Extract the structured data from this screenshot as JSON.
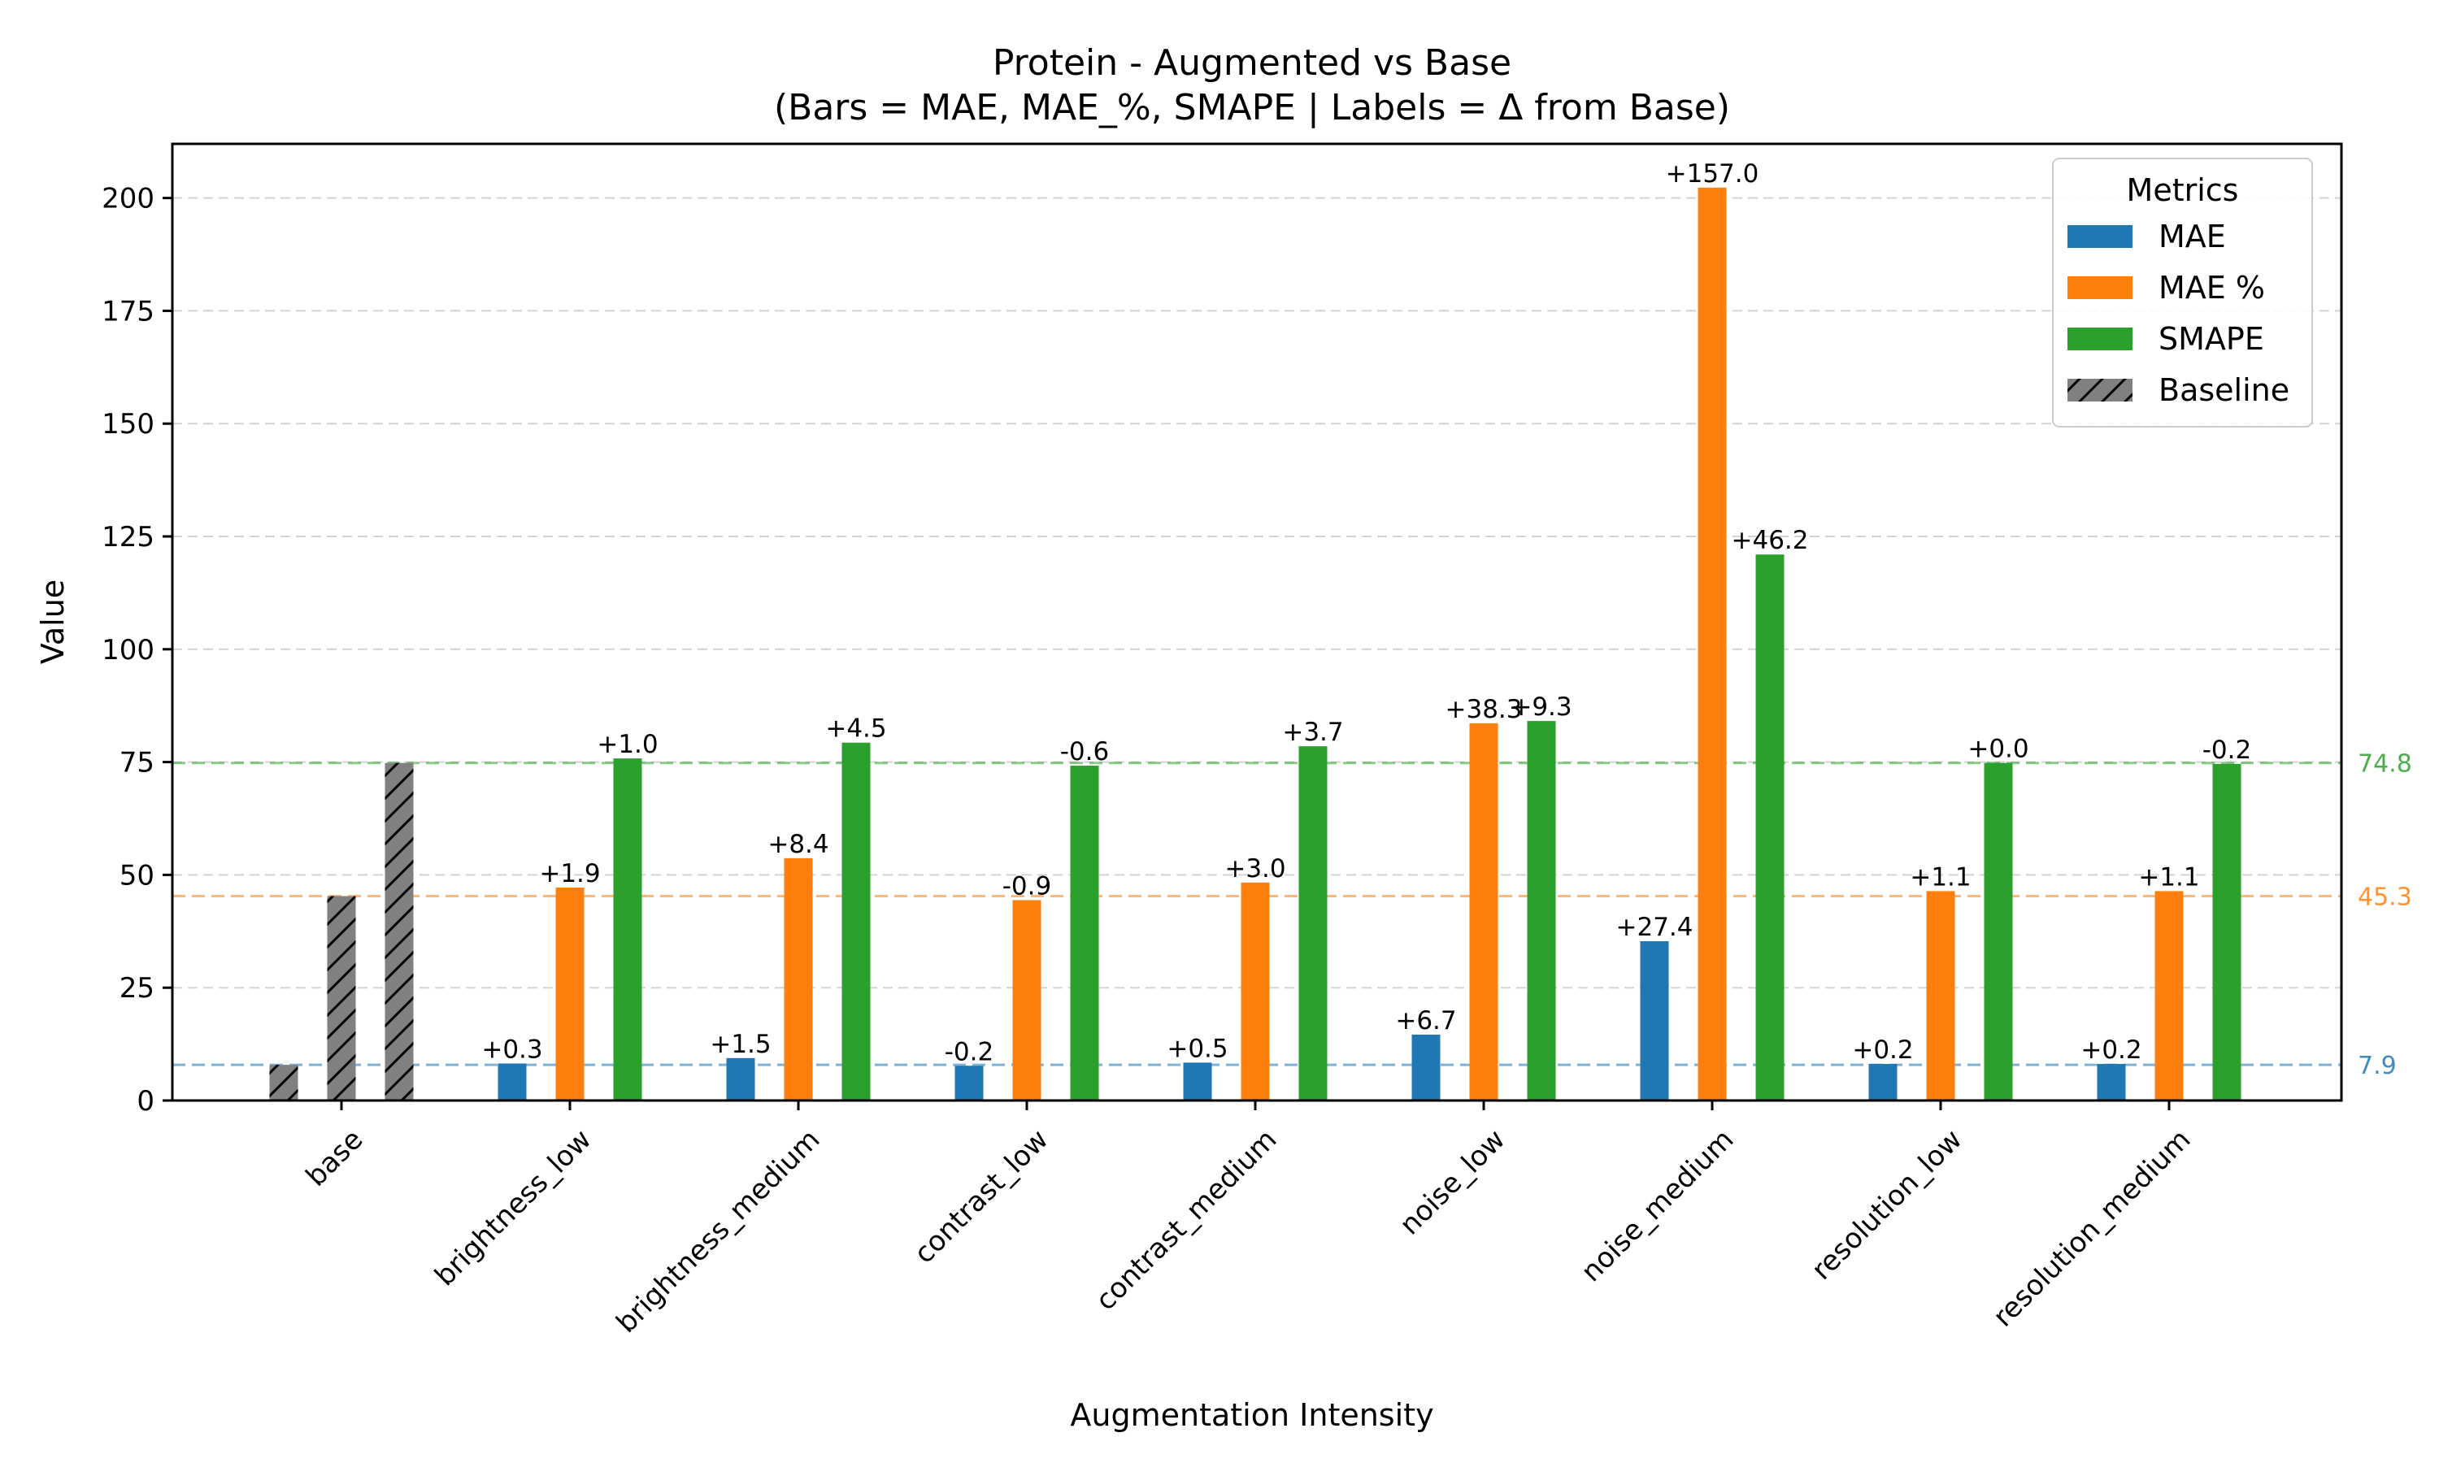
{
  "chart_data": {
    "type": "bar",
    "title": "Protein - Augmented vs Base",
    "subtitle": "(Bars = MAE, MAE_%, SMAPE | Labels = Δ from Base)",
    "xlabel": "Augmentation Intensity",
    "ylabel": "Value",
    "ylim": [
      0,
      212
    ],
    "yticks": [
      0,
      25,
      50,
      75,
      100,
      125,
      150,
      175,
      200
    ],
    "grid": "horizontal dashed",
    "categories": [
      "base",
      "brightness_low",
      "brightness_medium",
      "contrast_low",
      "contrast_medium",
      "noise_low",
      "noise_medium",
      "resolution_low",
      "resolution_medium"
    ],
    "series": [
      {
        "name": "MAE",
        "color": "#1f77b4",
        "values": [
          7.9,
          8.2,
          9.4,
          7.7,
          8.4,
          14.6,
          35.3,
          8.1,
          8.1
        ],
        "labels": [
          "",
          "+0.3",
          "+1.5",
          "-0.2",
          "+0.5",
          "+6.7",
          "+27.4",
          "+0.2",
          "+0.2"
        ]
      },
      {
        "name": "MAE %",
        "color": "#ff7f0e",
        "values": [
          45.3,
          47.2,
          53.7,
          44.4,
          48.3,
          83.6,
          202.3,
          46.4,
          46.4
        ],
        "labels": [
          "",
          "+1.9",
          "+8.4",
          "-0.9",
          "+3.0",
          "+38.3",
          "+157.0",
          "+1.1",
          "+1.1"
        ]
      },
      {
        "name": "SMAPE",
        "color": "#2ca02c",
        "values": [
          74.8,
          75.8,
          79.3,
          74.2,
          78.5,
          84.1,
          121.0,
          74.8,
          74.6
        ],
        "labels": [
          "",
          "+1.0",
          "+4.5",
          "-0.6",
          "+3.7",
          "+9.3",
          "+46.2",
          "+0.0",
          "-0.2"
        ]
      }
    ],
    "baseline": {
      "name": "Baseline",
      "category": "base",
      "color": "#808080",
      "hatch": "diagonal",
      "values": [
        7.9,
        45.3,
        74.8
      ]
    },
    "reference_lines": [
      {
        "value": 7.9,
        "label": "7.9",
        "color": "#1f77b4"
      },
      {
        "value": 45.3,
        "label": "45.3",
        "color": "#ff7f0e"
      },
      {
        "value": 74.8,
        "label": "74.8",
        "color": "#2ca02c"
      }
    ],
    "legend": {
      "title": "Metrics",
      "placement": "top-right",
      "entries": [
        "MAE",
        "MAE %",
        "SMAPE",
        "Baseline"
      ]
    }
  }
}
